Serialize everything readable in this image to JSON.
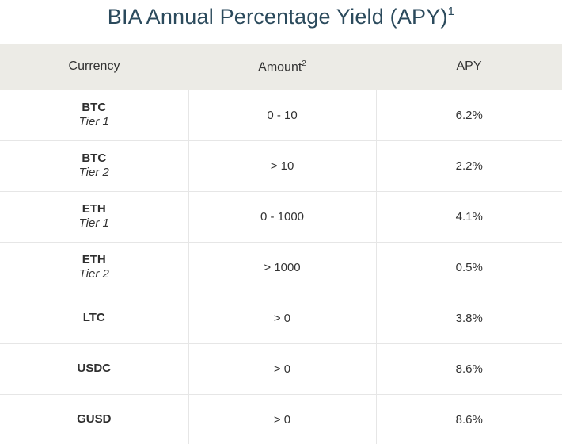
{
  "title": "BIA Annual Percentage Yield (APY)",
  "title_footnote": "1",
  "table": {
    "headers": {
      "currency": "Currency",
      "amount": "Amount",
      "amount_footnote": "2",
      "apy": "APY"
    },
    "rows": [
      {
        "currency": "BTC",
        "tier": "Tier 1",
        "amount": "0 - 10",
        "apy": "6.2%"
      },
      {
        "currency": "BTC",
        "tier": "Tier 2",
        "amount": "> 10",
        "apy": "2.2%"
      },
      {
        "currency": "ETH",
        "tier": "Tier 1",
        "amount": "0 - 1000",
        "apy": "4.1%"
      },
      {
        "currency": "ETH",
        "tier": "Tier 2",
        "amount": "> 1000",
        "apy": "0.5%"
      },
      {
        "currency": "LTC",
        "tier": "",
        "amount": "> 0",
        "apy": "3.8%"
      },
      {
        "currency": "USDC",
        "tier": "",
        "amount": "> 0",
        "apy": "8.6%"
      },
      {
        "currency": "GUSD",
        "tier": "",
        "amount": "> 0",
        "apy": "8.6%"
      }
    ]
  },
  "colors": {
    "title": "#2b4a5c",
    "header_background": "#ecebe6",
    "grid_line": "#e6e6e6",
    "text": "#333333"
  }
}
